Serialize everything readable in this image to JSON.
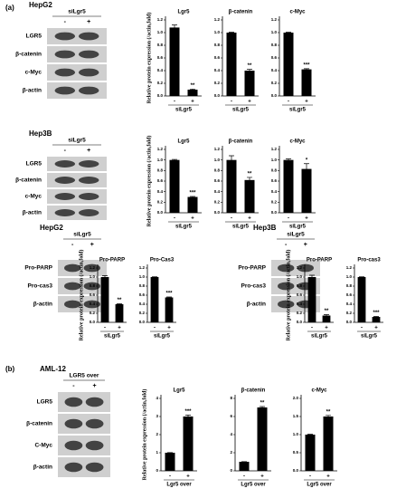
{
  "panel_labels": [
    "(a)",
    "(b)"
  ],
  "blots": [
    {
      "cell_line": "HepG2",
      "header": "siLgr5",
      "lanes": [
        "-",
        "+"
      ],
      "rows": [
        "LGR5",
        "β-catenin",
        "c-Myc",
        "β-actin"
      ]
    },
    {
      "cell_line": "Hep3B",
      "header": "siLgr5",
      "lanes": [
        "-",
        "+"
      ],
      "rows": [
        "LGR5",
        "β-catenin",
        "c-Myc",
        "β-actin"
      ]
    },
    {
      "cell_line": "HepG2",
      "header": "siLgr5",
      "lanes": [
        "-",
        "+"
      ],
      "rows": [
        "Pro-PARP",
        "Pro-cas3",
        "β-actin"
      ]
    },
    {
      "cell_line": "Hep3B",
      "header": "siLgr5",
      "lanes": [
        "-",
        "+"
      ],
      "rows": [
        "Pro-PARP",
        "Pro-cas3",
        "β-actin"
      ]
    },
    {
      "cell_line": "AML-12",
      "header": "LGR5 over",
      "lanes": [
        "-",
        "+"
      ],
      "rows": [
        "LGR5",
        "β-catenin",
        "C-Myc",
        "β-actin"
      ]
    }
  ],
  "chart_data": [
    {
      "type": "bar",
      "title": "Lgr5",
      "ylabel": "Relative protein expression (/actin,fold)",
      "xlabel": "siLgr5",
      "categories": [
        "-",
        "+"
      ],
      "values": [
        1.08,
        0.1
      ],
      "errors": [
        0.04,
        0.01
      ],
      "annotation": "**",
      "color": "#000000",
      "ylim": [
        0,
        1.2
      ],
      "yticks": [
        {
          "value": 0,
          "label": "0.0"
        },
        {
          "value": 0.2,
          "label": "0.2"
        },
        {
          "value": 0.4,
          "label": "0.4"
        },
        {
          "value": 0.6,
          "label": "0.6"
        },
        {
          "value": 0.8,
          "label": "0.8"
        },
        {
          "value": 1,
          "label": "1.0"
        },
        {
          "value": 1.2,
          "label": "1.2"
        }
      ]
    },
    {
      "type": "bar",
      "title": "β-catenin",
      "xlabel": "siLgr5",
      "categories": [
        "-",
        "+"
      ],
      "values": [
        1.0,
        0.4
      ],
      "errors": [
        0.005,
        0.02
      ],
      "annotation": "**",
      "color": "#000000",
      "ylim": [
        0,
        1.2
      ],
      "yticks": [
        {
          "value": 0,
          "label": "0.0"
        },
        {
          "value": 0.2,
          "label": "0.2"
        },
        {
          "value": 0.4,
          "label": "0.4"
        },
        {
          "value": 0.6,
          "label": "0.6"
        },
        {
          "value": 0.8,
          "label": "0.8"
        },
        {
          "value": 1,
          "label": "1.0"
        },
        {
          "value": 1.2,
          "label": "1.2"
        }
      ]
    },
    {
      "type": "bar",
      "title": "c-Myc",
      "xlabel": "siLgr5",
      "categories": [
        "-",
        "+"
      ],
      "values": [
        1.0,
        0.42
      ],
      "errors": [
        0.005,
        0.01
      ],
      "annotation": "***",
      "color": "#000000",
      "ylim": [
        0,
        1.2
      ],
      "yticks": [
        {
          "value": 0,
          "label": "0.0"
        },
        {
          "value": 0.2,
          "label": "0.2"
        },
        {
          "value": 0.4,
          "label": "0.4"
        },
        {
          "value": 0.6,
          "label": "0.6"
        },
        {
          "value": 0.8,
          "label": "0.8"
        },
        {
          "value": 1,
          "label": "1.0"
        },
        {
          "value": 1.2,
          "label": "1.2"
        }
      ]
    },
    {
      "type": "bar",
      "title": "Lgr5",
      "ylabel": "Relative protein expression (/actin,fold)",
      "xlabel": "siLgr5",
      "categories": [
        "-",
        "+"
      ],
      "values": [
        1.0,
        0.3
      ],
      "errors": [
        0.01,
        0.01
      ],
      "annotation": "***",
      "color": "#000000",
      "ylim": [
        0,
        1.2
      ],
      "yticks": [
        {
          "value": 0,
          "label": "0.0"
        },
        {
          "value": 0.2,
          "label": "0.2"
        },
        {
          "value": 0.4,
          "label": "0.4"
        },
        {
          "value": 0.6,
          "label": "0.6"
        },
        {
          "value": 0.8,
          "label": "0.8"
        },
        {
          "value": 1,
          "label": "1.0"
        },
        {
          "value": 1.2,
          "label": "1.2"
        }
      ]
    },
    {
      "type": "bar",
      "title": "β-catenin",
      "xlabel": "siLgr5",
      "categories": [
        "-",
        "+"
      ],
      "values": [
        1.0,
        0.62
      ],
      "errors": [
        0.08,
        0.05
      ],
      "annotation": "**",
      "color": "#000000",
      "ylim": [
        0,
        1.2
      ],
      "yticks": [
        {
          "value": 0,
          "label": "0.0"
        },
        {
          "value": 0.2,
          "label": "0.2"
        },
        {
          "value": 0.4,
          "label": "0.4"
        },
        {
          "value": 0.6,
          "label": "0.6"
        },
        {
          "value": 0.8,
          "label": "0.8"
        },
        {
          "value": 1,
          "label": "1.0"
        },
        {
          "value": 1.2,
          "label": "1.2"
        }
      ]
    },
    {
      "type": "bar",
      "title": "c-Myc",
      "xlabel": "siLgr5",
      "categories": [
        "-",
        "+"
      ],
      "values": [
        1.0,
        0.83
      ],
      "errors": [
        0.02,
        0.1
      ],
      "annotation": "*",
      "color": "#000000",
      "ylim": [
        0,
        1.2
      ],
      "yticks": [
        {
          "value": 0,
          "label": "0.0"
        },
        {
          "value": 0.2,
          "label": "0.2"
        },
        {
          "value": 0.4,
          "label": "0.4"
        },
        {
          "value": 0.6,
          "label": "0.6"
        },
        {
          "value": 0.8,
          "label": "0.8"
        },
        {
          "value": 1,
          "label": "1.0"
        },
        {
          "value": 1.2,
          "label": "1.2"
        }
      ]
    },
    {
      "type": "bar",
      "title": "Pro-PARP",
      "ylabel": "Relative protein expression (/actin,fold)",
      "xlabel": "siLgr5",
      "categories": [
        "-",
        "+"
      ],
      "values": [
        1.0,
        0.4
      ],
      "errors": [
        0.03,
        0.01
      ],
      "annotation": "**",
      "color": "#000000",
      "ylim": [
        0,
        1.2
      ],
      "yticks": [
        {
          "value": 0,
          "label": "0.0"
        },
        {
          "value": 0.2,
          "label": "0.2"
        },
        {
          "value": 0.4,
          "label": "0.4"
        },
        {
          "value": 0.6,
          "label": "0.6"
        },
        {
          "value": 0.8,
          "label": "0.8"
        },
        {
          "value": 1,
          "label": "1.0"
        },
        {
          "value": 1.2,
          "label": "1.2"
        }
      ]
    },
    {
      "type": "bar",
      "title": "Pro-Cas3",
      "xlabel": "siLgr5",
      "categories": [
        "-",
        "+"
      ],
      "values": [
        1.0,
        0.55
      ],
      "errors": [
        0.005,
        0.01
      ],
      "annotation": "***",
      "color": "#000000",
      "ylim": [
        0,
        1.2
      ],
      "yticks": [
        {
          "value": 0,
          "label": "0.0"
        },
        {
          "value": 0.2,
          "label": "0.2"
        },
        {
          "value": 0.4,
          "label": "0.4"
        },
        {
          "value": 0.6,
          "label": "0.6"
        },
        {
          "value": 0.8,
          "label": "0.8"
        },
        {
          "value": 1,
          "label": "1.0"
        },
        {
          "value": 1.2,
          "label": "1.2"
        }
      ]
    },
    {
      "type": "bar",
      "title": "Pro-PARP",
      "ylabel": "Relative protein expression (/actin,fold)",
      "xlabel": "siLgr5",
      "categories": [
        "-",
        "+"
      ],
      "values": [
        1.0,
        0.15
      ],
      "errors": [
        0.04,
        0.02
      ],
      "annotation": "**",
      "color": "#000000",
      "ylim": [
        0,
        1.2
      ],
      "yticks": [
        {
          "value": 0,
          "label": "0.0"
        },
        {
          "value": 0.2,
          "label": "0.2"
        },
        {
          "value": 0.4,
          "label": "0.4"
        },
        {
          "value": 0.6,
          "label": "0.6"
        },
        {
          "value": 0.8,
          "label": "0.8"
        },
        {
          "value": 1,
          "label": "1.0"
        },
        {
          "value": 1.2,
          "label": "1.2"
        }
      ]
    },
    {
      "type": "bar",
      "title": "Pro-cas3",
      "xlabel": "siLgr5",
      "categories": [
        "-",
        "+"
      ],
      "values": [
        1.0,
        0.12
      ],
      "errors": [
        0.005,
        0.01
      ],
      "annotation": "***",
      "color": "#000000",
      "ylim": [
        0,
        1.2
      ],
      "yticks": [
        {
          "value": 0,
          "label": "0.0"
        },
        {
          "value": 0.2,
          "label": "0.2"
        },
        {
          "value": 0.4,
          "label": "0.4"
        },
        {
          "value": 0.6,
          "label": "0.6"
        },
        {
          "value": 0.8,
          "label": "0.8"
        },
        {
          "value": 1,
          "label": "1.0"
        },
        {
          "value": 1.2,
          "label": "1.2"
        }
      ]
    },
    {
      "type": "bar",
      "title": "Lgr5",
      "ylabel": "Relative protein expression (/actin,fold)",
      "xlabel": "Lgr5 over",
      "categories": [
        "-",
        "+"
      ],
      "values": [
        1.0,
        3.0
      ],
      "errors": [
        0.01,
        0.08
      ],
      "annotation": "***",
      "color": "#000000",
      "ylim": [
        0,
        4
      ],
      "yticks": [
        0,
        1,
        2,
        3,
        4
      ]
    },
    {
      "type": "bar",
      "title": "β-catenin",
      "xlabel": "Lgr5 over",
      "categories": [
        "-",
        "+"
      ],
      "values": [
        1.0,
        7.0
      ],
      "errors": [
        0.01,
        0.1
      ],
      "annotation": "**",
      "color": "#000000",
      "ylim": [
        0,
        8
      ],
      "yticks": [
        0,
        2,
        4,
        6,
        8
      ]
    },
    {
      "type": "bar",
      "title": "c-Myc",
      "xlabel": "Lgr5 over",
      "categories": [
        "-",
        "+"
      ],
      "values": [
        1.0,
        1.5
      ],
      "errors": [
        0.01,
        0.03
      ],
      "annotation": "**",
      "color": "#000000",
      "ylim": [
        0,
        2
      ],
      "yticks": [
        {
          "value": 0,
          "label": "0.0"
        },
        {
          "value": 0.5,
          "label": "0.5"
        },
        {
          "value": 1,
          "label": "1.0"
        },
        {
          "value": 1.5,
          "label": "1.5"
        },
        {
          "value": 2,
          "label": "2.0"
        }
      ]
    }
  ]
}
